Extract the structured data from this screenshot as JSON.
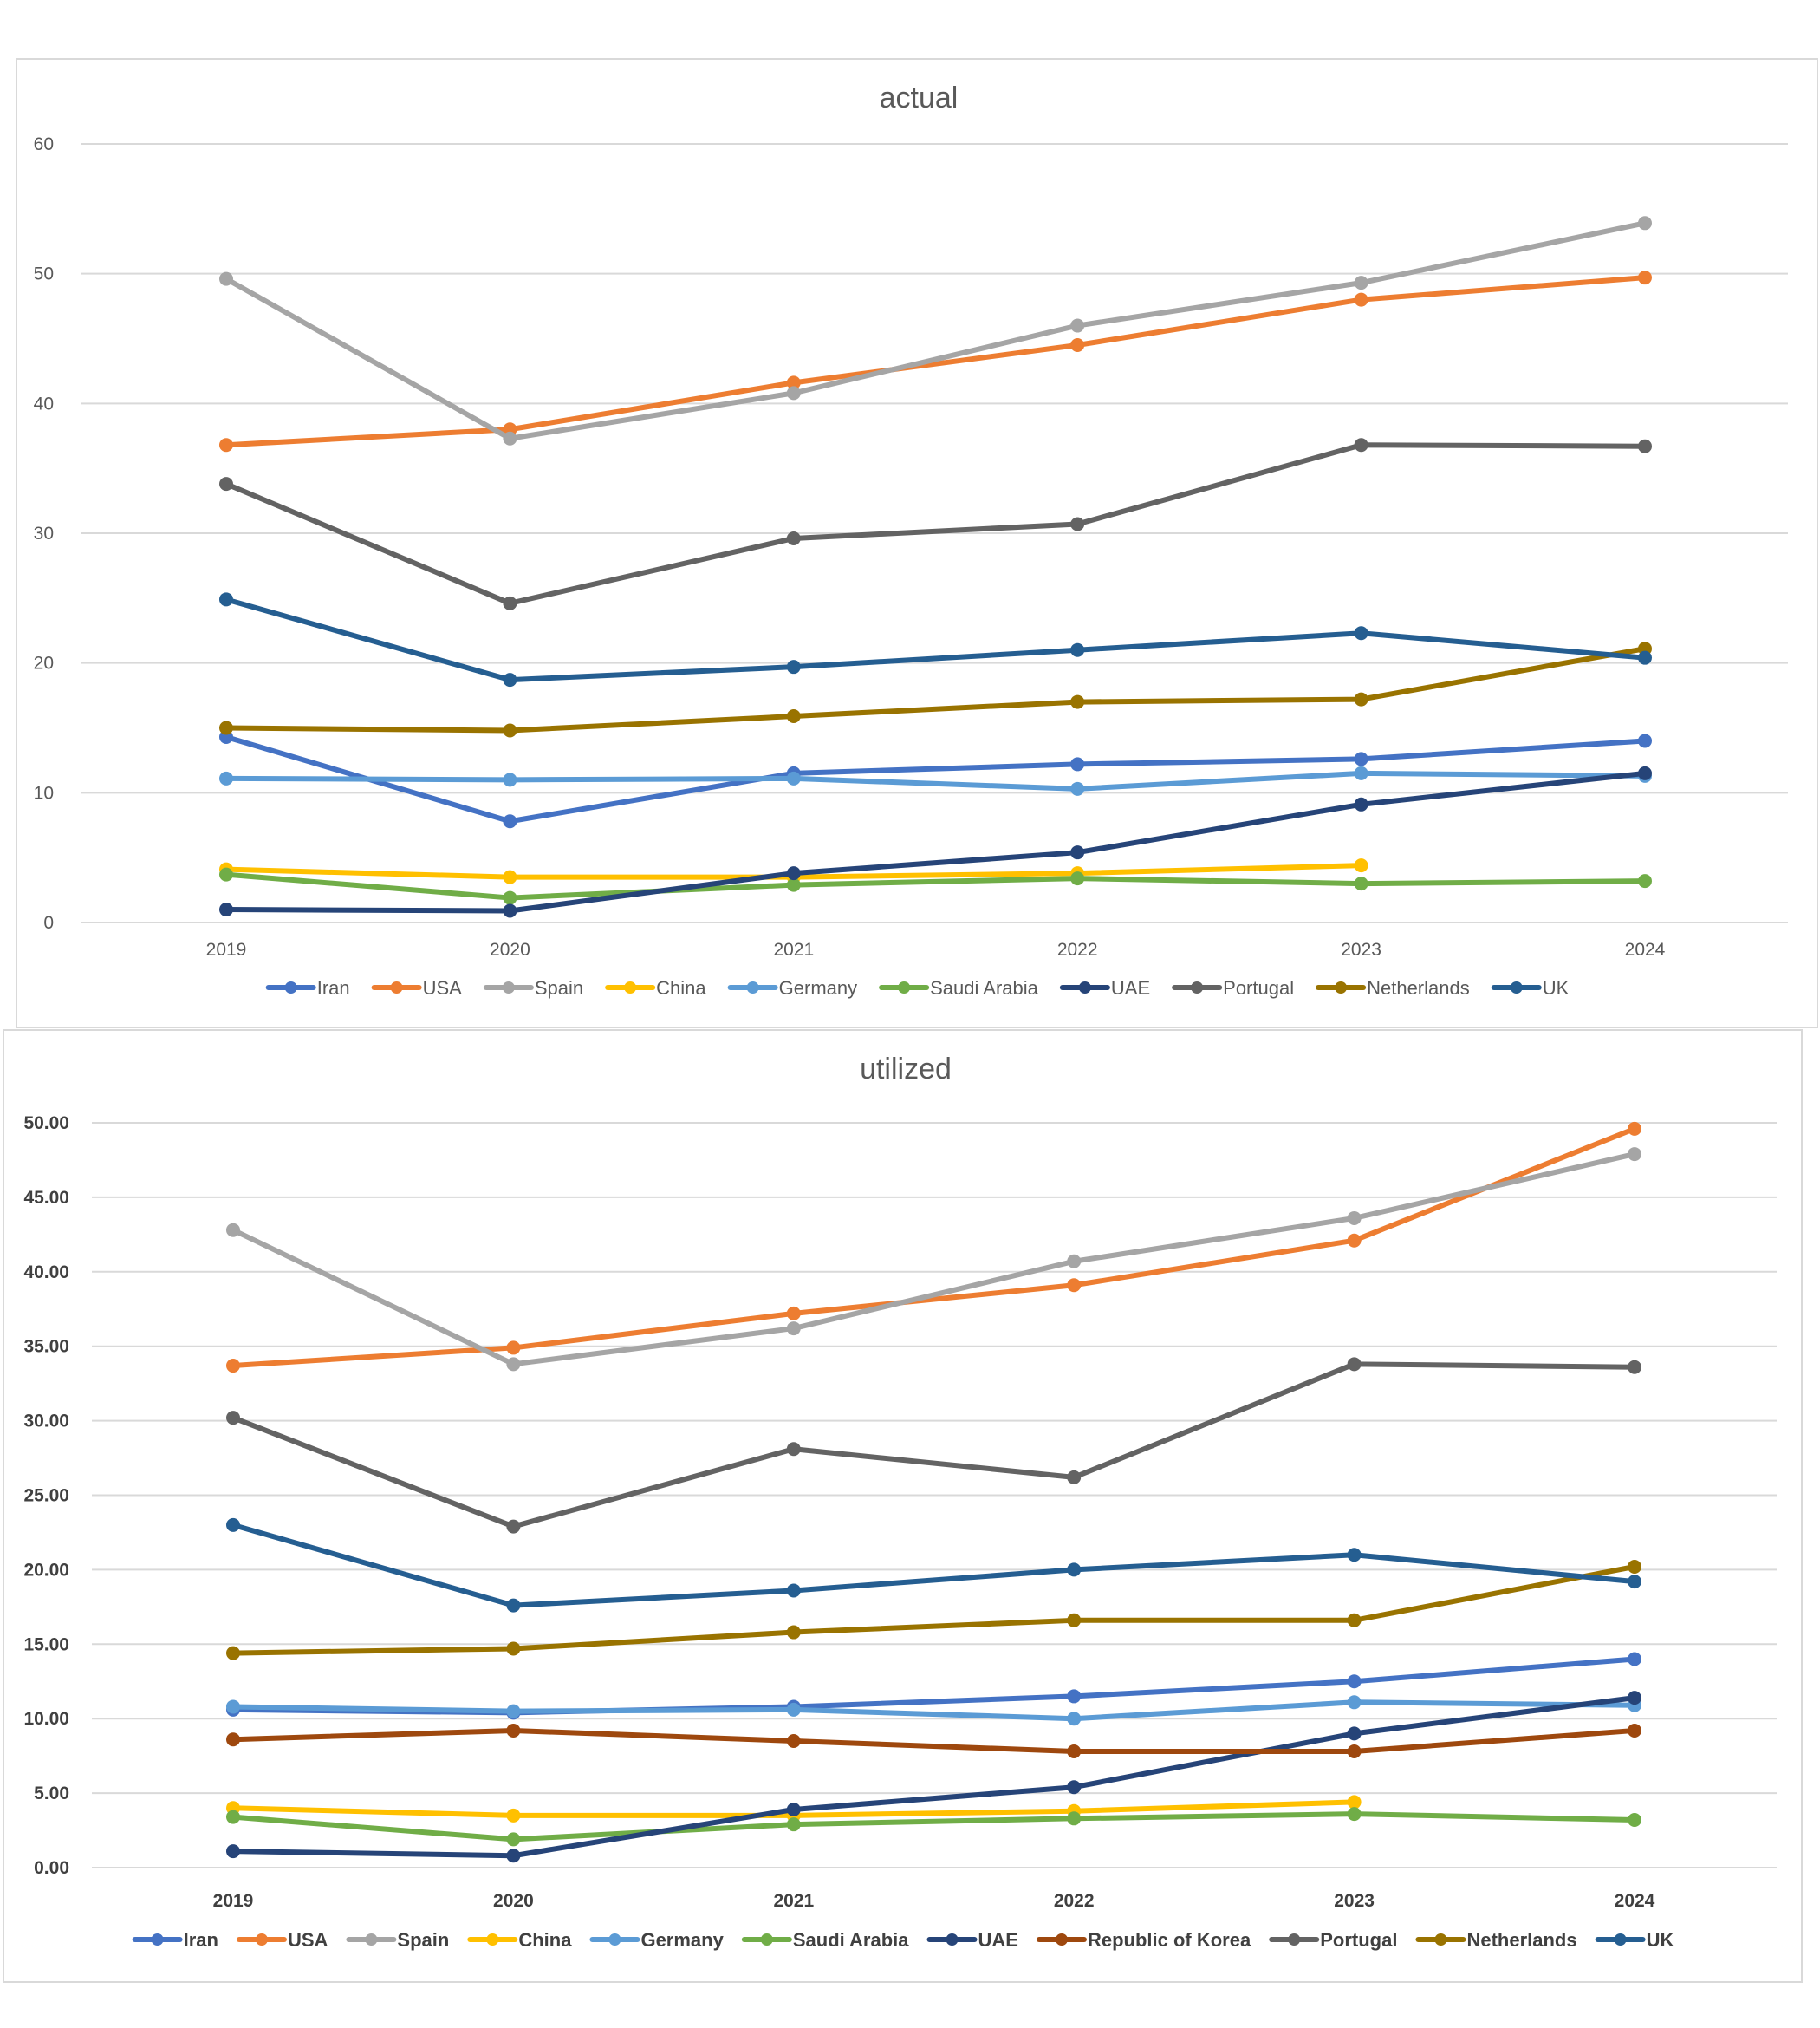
{
  "chart_data": [
    {
      "type": "line",
      "title": "actual",
      "xlabel": "",
      "ylabel": "",
      "x": [
        "2019",
        "2020",
        "2021",
        "2022",
        "2023",
        "2024"
      ],
      "ylim": [
        0,
        60
      ],
      "yticks": [
        "0",
        "10",
        "20",
        "30",
        "40",
        "50",
        "60"
      ],
      "grid": true,
      "legend": "bottom",
      "series": [
        {
          "name": "Iran",
          "color": "#4472C4",
          "values": [
            14.3,
            7.8,
            11.5,
            12.2,
            12.6,
            14.0
          ]
        },
        {
          "name": "USA",
          "color": "#ED7D31",
          "values": [
            36.8,
            38.0,
            41.6,
            44.5,
            48.0,
            49.7
          ]
        },
        {
          "name": "Spain",
          "color": "#A5A5A5",
          "values": [
            49.6,
            37.3,
            40.8,
            46.0,
            49.3,
            53.9
          ]
        },
        {
          "name": "China",
          "color": "#FFC000",
          "values": [
            4.1,
            3.5,
            3.5,
            3.8,
            4.4,
            null
          ]
        },
        {
          "name": "Germany",
          "color": "#5B9BD5",
          "values": [
            11.1,
            11.0,
            11.1,
            10.3,
            11.5,
            11.3
          ]
        },
        {
          "name": "Saudi Arabia",
          "color": "#70AD47",
          "values": [
            3.7,
            1.9,
            2.9,
            3.4,
            3.0,
            3.2
          ]
        },
        {
          "name": "UAE",
          "color": "#264478",
          "values": [
            1.0,
            0.9,
            3.8,
            5.4,
            9.1,
            11.5
          ]
        },
        {
          "name": "Portugal",
          "color": "#636363",
          "values": [
            33.8,
            24.6,
            29.6,
            30.7,
            36.8,
            36.7
          ]
        },
        {
          "name": "Netherlands",
          "color": "#997300",
          "values": [
            15.0,
            14.8,
            15.9,
            17.0,
            17.2,
            21.1
          ]
        },
        {
          "name": "UK",
          "color": "#255E91",
          "values": [
            24.9,
            18.7,
            19.7,
            21.0,
            22.3,
            20.4
          ]
        }
      ]
    },
    {
      "type": "line",
      "title": "utilized",
      "xlabel": "",
      "ylabel": "",
      "x": [
        "2019",
        "2020",
        "2021",
        "2022",
        "2023",
        "2024"
      ],
      "ylim": [
        0,
        50
      ],
      "yticks": [
        "0.00",
        "5.00",
        "10.00",
        "15.00",
        "20.00",
        "25.00",
        "30.00",
        "35.00",
        "40.00",
        "45.00",
        "50.00"
      ],
      "grid": true,
      "legend": "bottom",
      "series": [
        {
          "name": "Iran",
          "color": "#4472C4",
          "values": [
            10.6,
            10.4,
            10.8,
            11.5,
            12.5,
            14.0
          ]
        },
        {
          "name": "USA",
          "color": "#ED7D31",
          "values": [
            33.7,
            34.9,
            37.2,
            39.1,
            42.1,
            49.6
          ]
        },
        {
          "name": "Spain",
          "color": "#A5A5A5",
          "values": [
            42.8,
            33.8,
            36.2,
            40.7,
            43.6,
            47.9
          ]
        },
        {
          "name": "China",
          "color": "#FFC000",
          "values": [
            4.0,
            3.5,
            3.5,
            3.8,
            4.4,
            null
          ]
        },
        {
          "name": "Germany",
          "color": "#5B9BD5",
          "values": [
            10.8,
            10.5,
            10.6,
            10.0,
            11.1,
            10.9
          ]
        },
        {
          "name": "Saudi Arabia",
          "color": "#70AD47",
          "values": [
            3.4,
            1.9,
            2.9,
            3.3,
            3.6,
            3.2
          ]
        },
        {
          "name": "UAE",
          "color": "#264478",
          "values": [
            1.1,
            0.8,
            3.9,
            5.4,
            9.0,
            11.4
          ]
        },
        {
          "name": "Republic of Korea",
          "color": "#9E480E",
          "values": [
            8.6,
            9.2,
            8.5,
            7.8,
            7.8,
            9.2
          ]
        },
        {
          "name": "Portugal",
          "color": "#636363",
          "values": [
            30.2,
            22.9,
            28.1,
            26.2,
            33.8,
            33.6
          ]
        },
        {
          "name": "Netherlands",
          "color": "#997300",
          "values": [
            14.4,
            14.7,
            15.8,
            16.6,
            16.6,
            20.2
          ]
        },
        {
          "name": "UK",
          "color": "#255E91",
          "values": [
            23.0,
            17.6,
            18.6,
            20.0,
            21.0,
            19.2
          ]
        }
      ]
    }
  ]
}
